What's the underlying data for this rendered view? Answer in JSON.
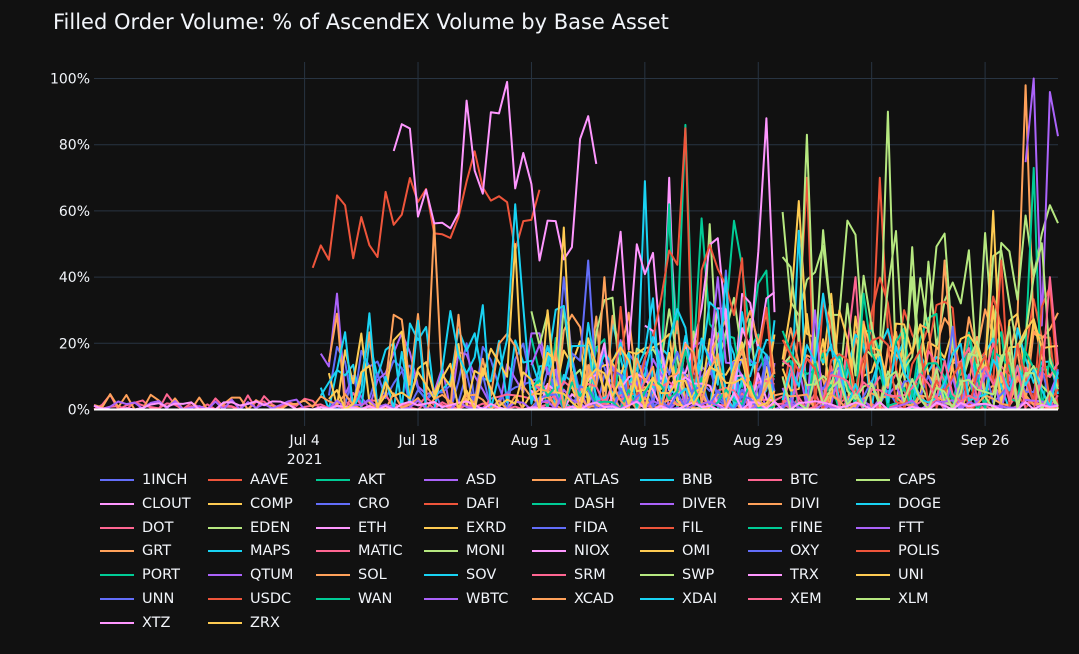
{
  "chart_data": {
    "type": "line",
    "title": "Filled Order Volume: % of AscendEX Volume by Base Asset",
    "xlabel": "",
    "ylabel": "",
    "ylim": [
      -5,
      105
    ],
    "x_range_days": [
      -26,
      93
    ],
    "y_ticks": [
      {
        "value": 0,
        "label": "0%"
      },
      {
        "value": 20,
        "label": "20%"
      },
      {
        "value": 40,
        "label": "40%"
      },
      {
        "value": 60,
        "label": "60%"
      },
      {
        "value": 80,
        "label": "80%"
      },
      {
        "value": 100,
        "label": "100%"
      }
    ],
    "x_ticks": [
      {
        "day": 0,
        "label": "Jul 4",
        "sublabel": "2021"
      },
      {
        "day": 14,
        "label": "Jul 18",
        "sublabel": ""
      },
      {
        "day": 28,
        "label": "Aug 1",
        "sublabel": ""
      },
      {
        "day": 42,
        "label": "Aug 15",
        "sublabel": ""
      },
      {
        "day": 56,
        "label": "Aug 29",
        "sublabel": ""
      },
      {
        "day": 70,
        "label": "Sep 12",
        "sublabel": ""
      },
      {
        "day": 84,
        "label": "Sep 26",
        "sublabel": ""
      }
    ],
    "grid": true,
    "legend_position": "bottom",
    "series": [
      {
        "name": "1INCH",
        "color": "#636efa",
        "start": 3,
        "end": 58,
        "base": 8,
        "amp": 12,
        "peak": 40,
        "seed": 1
      },
      {
        "name": "AAVE",
        "color": "#ef553b",
        "start": 59,
        "end": 93,
        "base": 15,
        "amp": 20,
        "peak": 70,
        "seed": 2
      },
      {
        "name": "AKT",
        "color": "#00cc96",
        "start": 45,
        "end": 58,
        "base": 30,
        "amp": 30,
        "peak": 86,
        "seed": 3
      },
      {
        "name": "ASD",
        "color": "#ab63fa",
        "start": 2,
        "end": 58,
        "base": 10,
        "amp": 15,
        "peak": 35,
        "seed": 4
      },
      {
        "name": "ATLAS",
        "color": "#ffa15a",
        "start": 59,
        "end": 93,
        "base": 12,
        "amp": 20,
        "peak": 98,
        "seed": 5
      },
      {
        "name": "BNB",
        "color": "#19d3f3",
        "start": 2,
        "end": 58,
        "base": 12,
        "amp": 15,
        "peak": 69,
        "seed": 6
      },
      {
        "name": "BTC",
        "color": "#ff6692",
        "start": -26,
        "end": 93,
        "base": 1,
        "amp": 1.5,
        "peak": 3,
        "seed": 7
      },
      {
        "name": "CAPS",
        "color": "#b6e880",
        "start": 59,
        "end": 93,
        "base": 35,
        "amp": 30,
        "peak": 90,
        "seed": 8
      },
      {
        "name": "CLOUT",
        "color": "#ff97ff",
        "start": 42,
        "end": 58,
        "base": 15,
        "amp": 25,
        "peak": 70,
        "seed": 9
      },
      {
        "name": "COMP",
        "color": "#fecb52",
        "start": 59,
        "end": 93,
        "base": 15,
        "amp": 20,
        "peak": 63,
        "seed": 10
      },
      {
        "name": "CRO",
        "color": "#636efa",
        "start": 3,
        "end": 58,
        "base": 6,
        "amp": 8,
        "peak": 42,
        "seed": 11
      },
      {
        "name": "DAFI",
        "color": "#ef553b",
        "start": 1,
        "end": 29,
        "base": 55,
        "amp": 15,
        "peak": 78,
        "seed": 12
      },
      {
        "name": "DASH",
        "color": "#00cc96",
        "start": 28,
        "end": 58,
        "base": 10,
        "amp": 15,
        "peak": 62,
        "seed": 13
      },
      {
        "name": "DIVER",
        "color": "#ab63fa",
        "start": 89,
        "end": 93,
        "base": 60,
        "amp": 40,
        "peak": 100,
        "seed": 14
      },
      {
        "name": "DIVI",
        "color": "#ffa15a",
        "start": 3,
        "end": 58,
        "base": 15,
        "amp": 15,
        "peak": 56,
        "seed": 15
      },
      {
        "name": "DOGE",
        "color": "#19d3f3",
        "start": 59,
        "end": 93,
        "base": 10,
        "amp": 15,
        "peak": 54,
        "seed": 16
      },
      {
        "name": "DOT",
        "color": "#ff6692",
        "start": -26,
        "end": 93,
        "base": 2,
        "amp": 3,
        "peak": 8,
        "seed": 17
      },
      {
        "name": "EDEN",
        "color": "#b6e880",
        "start": 28,
        "end": 58,
        "base": 15,
        "amp": 20,
        "peak": 56,
        "seed": 18
      },
      {
        "name": "ETH",
        "color": "#ff97ff",
        "start": 11,
        "end": 36,
        "base": 70,
        "amp": 25,
        "peak": 99,
        "seed": 19
      },
      {
        "name": "EXRD",
        "color": "#fecb52",
        "start": 3,
        "end": 58,
        "base": 12,
        "amp": 12,
        "peak": 50,
        "seed": 20
      },
      {
        "name": "FIDA",
        "color": "#636efa",
        "start": 28,
        "end": 58,
        "base": 8,
        "amp": 10,
        "peak": 45,
        "seed": 21
      },
      {
        "name": "FIL",
        "color": "#ef553b",
        "start": 59,
        "end": 93,
        "base": 20,
        "amp": 20,
        "peak": 70,
        "seed": 22
      },
      {
        "name": "FINE",
        "color": "#00cc96",
        "start": 59,
        "end": 93,
        "base": 10,
        "amp": 20,
        "peak": 73,
        "seed": 23
      },
      {
        "name": "FTT",
        "color": "#ab63fa",
        "start": 28,
        "end": 58,
        "base": 10,
        "amp": 12,
        "peak": 40,
        "seed": 24
      },
      {
        "name": "GRT",
        "color": "#ffa15a",
        "start": 59,
        "end": 93,
        "base": 12,
        "amp": 15,
        "peak": 45,
        "seed": 25
      },
      {
        "name": "MAPS",
        "color": "#19d3f3",
        "start": 2,
        "end": 58,
        "base": 15,
        "amp": 20,
        "peak": 62,
        "seed": 26
      },
      {
        "name": "MATIC",
        "color": "#ff6692",
        "start": 59,
        "end": 93,
        "base": 10,
        "amp": 10,
        "peak": 40,
        "seed": 27
      },
      {
        "name": "MONI",
        "color": "#b6e880",
        "start": 59,
        "end": 93,
        "base": 30,
        "amp": 25,
        "peak": 83,
        "seed": 28
      },
      {
        "name": "NIOX",
        "color": "#ff97ff",
        "start": 38,
        "end": 58,
        "base": 30,
        "amp": 25,
        "peak": 88,
        "seed": 29
      },
      {
        "name": "OMI",
        "color": "#fecb52",
        "start": 59,
        "end": 93,
        "base": 15,
        "amp": 15,
        "peak": 60,
        "seed": 30
      },
      {
        "name": "OXY",
        "color": "#636efa",
        "start": 59,
        "end": 93,
        "base": 5,
        "amp": 8,
        "peak": 25,
        "seed": 31
      },
      {
        "name": "POLIS",
        "color": "#ef553b",
        "start": 38,
        "end": 58,
        "base": 25,
        "amp": 25,
        "peak": 85,
        "seed": 32
      },
      {
        "name": "PORT",
        "color": "#00cc96",
        "start": 59,
        "end": 93,
        "base": 8,
        "amp": 10,
        "peak": 35,
        "seed": 33
      },
      {
        "name": "QTUM",
        "color": "#ab63fa",
        "start": 59,
        "end": 93,
        "base": 5,
        "amp": 8,
        "peak": 30,
        "seed": 34
      },
      {
        "name": "SOL",
        "color": "#ffa15a",
        "start": -26,
        "end": 93,
        "base": 2,
        "amp": 3,
        "peak": 10,
        "seed": 35
      },
      {
        "name": "SOV",
        "color": "#19d3f3",
        "start": 28,
        "end": 58,
        "base": 10,
        "amp": 12,
        "peak": 40,
        "seed": 36
      },
      {
        "name": "SRM",
        "color": "#ff6692",
        "start": 28,
        "end": 58,
        "base": 4,
        "amp": 5,
        "peak": 18,
        "seed": 37
      },
      {
        "name": "SWP",
        "color": "#b6e880",
        "start": 59,
        "end": 93,
        "base": 8,
        "amp": 10,
        "peak": 40,
        "seed": 38
      },
      {
        "name": "TRX",
        "color": "#ff97ff",
        "start": 28,
        "end": 58,
        "base": 5,
        "amp": 6,
        "peak": 20,
        "seed": 39
      },
      {
        "name": "UNI",
        "color": "#fecb52",
        "start": 28,
        "end": 58,
        "base": 12,
        "amp": 15,
        "peak": 55,
        "seed": 40
      },
      {
        "name": "UNN",
        "color": "#636efa",
        "start": 28,
        "end": 58,
        "base": 3,
        "amp": 5,
        "peak": 15,
        "seed": 41
      },
      {
        "name": "USDC",
        "color": "#ef553b",
        "start": 59,
        "end": 93,
        "base": 10,
        "amp": 12,
        "peak": 45,
        "seed": 42
      },
      {
        "name": "WAN",
        "color": "#00cc96",
        "start": 28,
        "end": 58,
        "base": 4,
        "amp": 5,
        "peak": 18,
        "seed": 43
      },
      {
        "name": "WBTC",
        "color": "#ab63fa",
        "start": -26,
        "end": 93,
        "base": 1,
        "amp": 2,
        "peak": 6,
        "seed": 44
      },
      {
        "name": "XCAD",
        "color": "#ffa15a",
        "start": 28,
        "end": 58,
        "base": 8,
        "amp": 12,
        "peak": 40,
        "seed": 45
      },
      {
        "name": "XDAI",
        "color": "#19d3f3",
        "start": 59,
        "end": 93,
        "base": 10,
        "amp": 10,
        "peak": 35,
        "seed": 46
      },
      {
        "name": "XEM",
        "color": "#ff6692",
        "start": 59,
        "end": 93,
        "base": 6,
        "amp": 10,
        "peak": 40,
        "seed": 47
      },
      {
        "name": "XLM",
        "color": "#b6e880",
        "start": 59,
        "end": 93,
        "base": 6,
        "amp": 8,
        "peak": 25,
        "seed": 48
      },
      {
        "name": "XTZ",
        "color": "#ff97ff",
        "start": -26,
        "end": 93,
        "base": 1,
        "amp": 1.5,
        "peak": 5,
        "seed": 49
      },
      {
        "name": "ZRX",
        "color": "#fecb52",
        "start": 3,
        "end": 58,
        "base": 6,
        "amp": 8,
        "peak": 30,
        "seed": 50
      }
    ]
  }
}
